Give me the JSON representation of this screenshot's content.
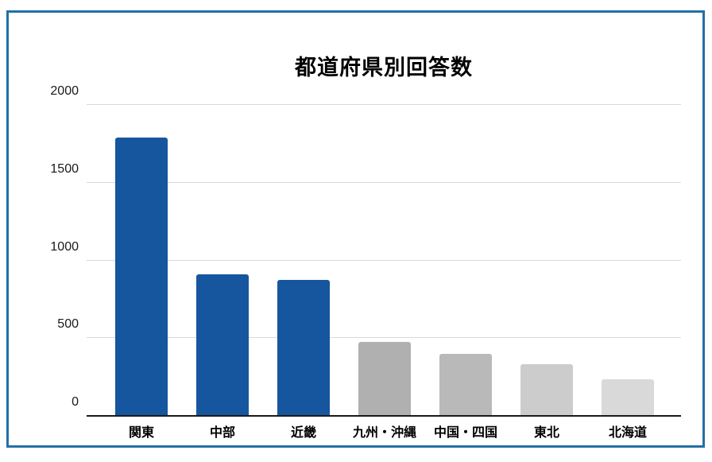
{
  "chart_data": {
    "type": "bar",
    "title": "都道府県別回答数",
    "categories": [
      "関東",
      "中部",
      "近畿",
      "九州・沖縄",
      "中国・四国",
      "東北",
      "北海道"
    ],
    "values": [
      1785,
      905,
      870,
      470,
      395,
      325,
      230
    ],
    "bar_colors": [
      "#15569e",
      "#15569e",
      "#15569e",
      "#b0b0b0",
      "#b9b9b9",
      "#cccccc",
      "#d9d9d9"
    ],
    "xlabel": "",
    "ylabel": "",
    "ylim": [
      0,
      2000
    ],
    "yticks": [
      0,
      500,
      1000,
      1500,
      2000
    ],
    "grid": "horizontal",
    "legend": "none"
  },
  "frame": {
    "border_color": "#2171a5",
    "background_color": "#ffffff"
  },
  "axis_colors": {
    "gridline": "#d9d9d9",
    "baseline": "#1a1a1a",
    "tick_text": "#1a1a1a"
  }
}
